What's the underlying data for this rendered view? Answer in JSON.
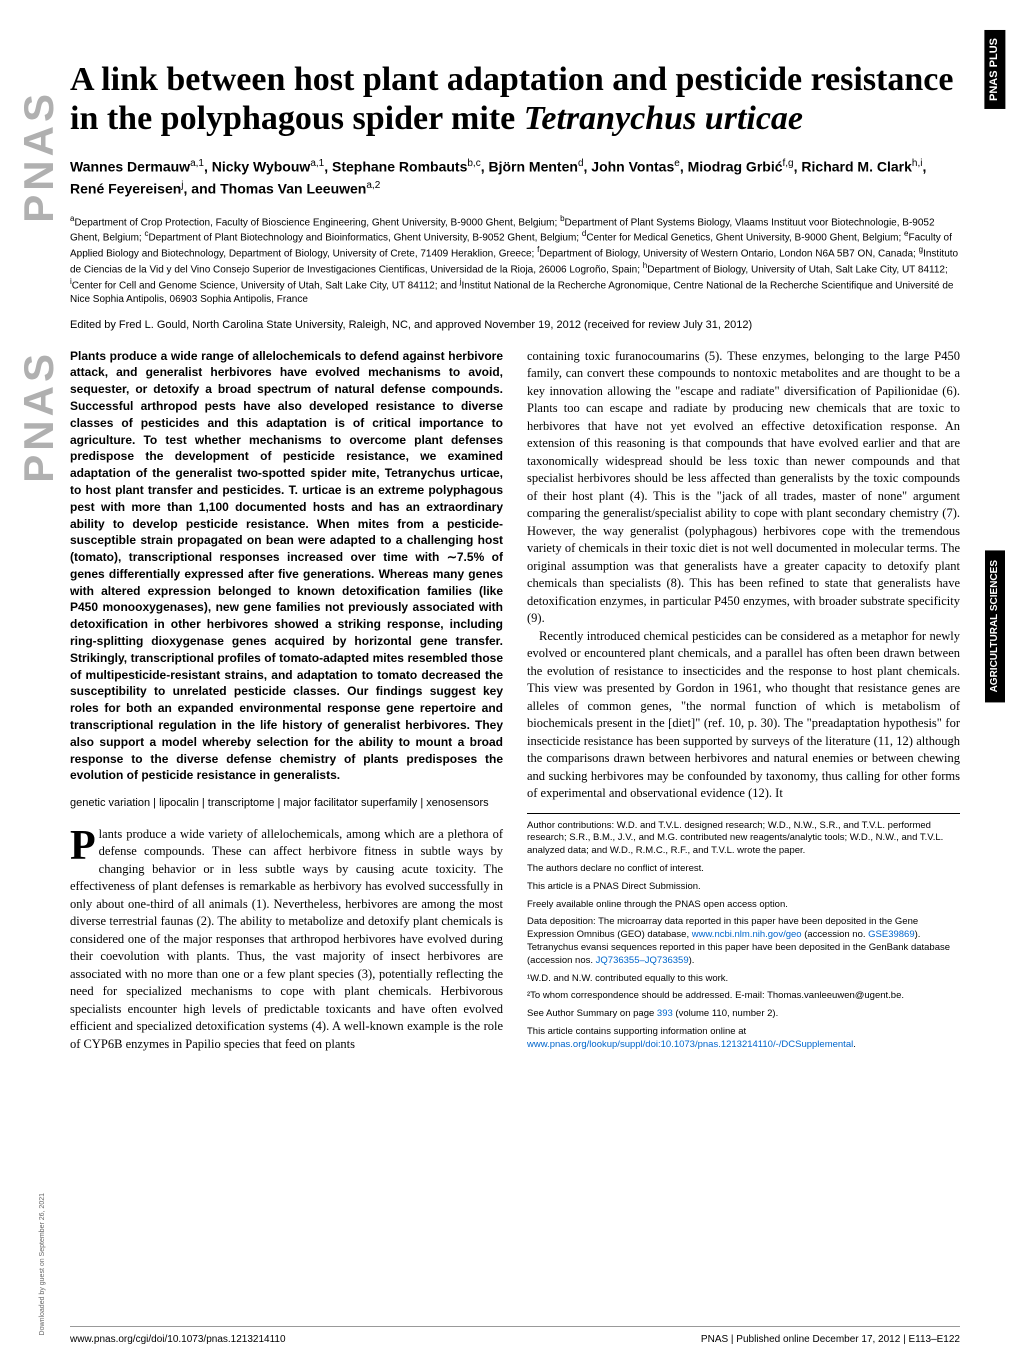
{
  "badges": {
    "pnas_plus": "PNAS PLUS",
    "agri_sciences": "AGRICULTURAL SCIENCES"
  },
  "logo_text": "PNAS",
  "title": {
    "line1": "A link between host plant adaptation and pesticide resistance in the polyphagous spider mite",
    "italic_species": "Tetranychus urticae"
  },
  "authors_html": "Wannes Dermauw<sup>a,1</sup>, Nicky Wybouw<sup>a,1</sup>, Stephane Rombauts<sup>b,c</sup>, Björn Menten<sup>d</sup>, John Vontas<sup>e</sup>, Miodrag Grbić<sup>f,g</sup>, Richard M. Clark<sup>h,i</sup>, René Feyereisen<sup>j</sup>, and Thomas Van Leeuwen<sup>a,2</sup>",
  "affiliations_html": "<sup>a</sup>Department of Crop Protection, Faculty of Bioscience Engineering, Ghent University, B-9000 Ghent, Belgium; <sup>b</sup>Department of Plant Systems Biology, Vlaams Instituut voor Biotechnologie, B-9052 Ghent, Belgium; <sup>c</sup>Department of Plant Biotechnology and Bioinformatics, Ghent University, B-9052 Ghent, Belgium; <sup>d</sup>Center for Medical Genetics, Ghent University, B-9000 Ghent, Belgium; <sup>e</sup>Faculty of Applied Biology and Biotechnology, Department of Biology, University of Crete, 71409 Heraklion, Greece; <sup>f</sup>Department of Biology, University of Western Ontario, London N6A 5B7 ON, Canada; <sup>g</sup>Instituto de Ciencias de la Vid y del Vino Consejo Superior de Investigaciones Cientificas, Universidad de la Rioja, 26006 Logroño, Spain; <sup>h</sup>Department of Biology, University of Utah, Salt Lake City, UT 84112; <sup>i</sup>Center for Cell and Genome Science, University of Utah, Salt Lake City, UT 84112; and <sup>j</sup>Institut National de la Recherche Agronomique, Centre National de la Recherche Scientifique and Université de Nice Sophia Antipolis, 06903 Sophia Antipolis, France",
  "edited_by": "Edited by Fred L. Gould, North Carolina State University, Raleigh, NC, and approved November 19, 2012 (received for review July 31, 2012)",
  "abstract": "Plants produce a wide range of allelochemicals to defend against herbivore attack, and generalist herbivores have evolved mechanisms to avoid, sequester, or detoxify a broad spectrum of natural defense compounds. Successful arthropod pests have also developed resistance to diverse classes of pesticides and this adaptation is of critical importance to agriculture. To test whether mechanisms to overcome plant defenses predispose the development of pesticide resistance, we examined adaptation of the generalist two-spotted spider mite, Tetranychus urticae, to host plant transfer and pesticides. T. urticae is an extreme polyphagous pest with more than 1,100 documented hosts and has an extraordinary ability to develop pesticide resistance. When mites from a pesticide-susceptible strain propagated on bean were adapted to a challenging host (tomato), transcriptional responses increased over time with ∼7.5% of genes differentially expressed after five generations. Whereas many genes with altered expression belonged to known detoxification families (like P450 monooxygenases), new gene families not previously associated with detoxification in other herbivores showed a striking response, including ring-splitting dioxygenase genes acquired by horizontal gene transfer. Strikingly, transcriptional profiles of tomato-adapted mites resembled those of multipesticide-resistant strains, and adaptation to tomato decreased the susceptibility to unrelated pesticide classes. Our findings suggest key roles for both an expanded environmental response gene repertoire and transcriptional regulation in the life history of generalist herbivores. They also support a model whereby selection for the ability to mount a broad response to the diverse defense chemistry of plants predisposes the evolution of pesticide resistance in generalists.",
  "keywords": "genetic variation | lipocalin | transcriptome | major facilitator superfamily | xenosensors",
  "body_left": "lants produce a wide variety of allelochemicals, among which are a plethora of defense compounds. These can affect herbivore fitness in subtle ways by changing behavior or in less subtle ways by causing acute toxicity. The effectiveness of plant defenses is remarkable as herbivory has evolved successfully in only about one-third of all animals (1). Nevertheless, herbivores are among the most diverse terrestrial faunas (2). The ability to metabolize and detoxify plant chemicals is considered one of the major responses that arthropod herbivores have evolved during their coevolution with plants. Thus, the vast majority of insect herbivores are associated with no more than one or a few plant species (3), potentially reflecting the need for specialized mechanisms to cope with plant chemicals. Herbivorous specialists encounter high levels of predictable toxicants and have often evolved efficient and specialized detoxification systems (4). A well-known example is the role of CYP6B enzymes in Papilio species that feed on plants",
  "body_right_p1": "containing toxic furanocoumarins (5). These enzymes, belonging to the large P450 family, can convert these compounds to nontoxic metabolites and are thought to be a key innovation allowing the \"escape and radiate\" diversification of Papilionidae (6). Plants too can escape and radiate by producing new chemicals that are toxic to herbivores that have not yet evolved an effective detoxification response. An extension of this reasoning is that compounds that have evolved earlier and that are taxonomically widespread should be less toxic than newer compounds and that specialist herbivores should be less affected than generalists by the toxic compounds of their host plant (4). This is the \"jack of all trades, master of none\" argument comparing the generalist/specialist ability to cope with plant secondary chemistry (7). However, the way generalist (polyphagous) herbivores cope with the tremendous variety of chemicals in their toxic diet is not well documented in molecular terms. The original assumption was that generalists have a greater capacity to detoxify plant chemicals than specialists (8). This has been refined to state that generalists have detoxification enzymes, in particular P450 enzymes, with broader substrate specificity (9).",
  "body_right_p2": "Recently introduced chemical pesticides can be considered as a metaphor for newly evolved or encountered plant chemicals, and a parallel has often been drawn between the evolution of resistance to insecticides and the response to host plant chemicals. This view was presented by Gordon in 1961, who thought that resistance genes are alleles of common genes, \"the normal function of which is metabolism of biochemicals present in the [diet]\" (ref. 10, p. 30). The \"preadaptation hypothesis\" for insecticide resistance has been supported by surveys of the literature (11, 12) although the comparisons drawn between herbivores and natural enemies or between chewing and sucking herbivores may be confounded by taxonomy, thus calling for other forms of experimental and observational evidence (12). It",
  "footnotes": {
    "author_contrib": "Author contributions: W.D. and T.V.L. designed research; W.D., N.W., S.R., and T.V.L. performed research; S.R., B.M., J.V., and M.G. contributed new reagents/analytic tools; W.D., N.W., and T.V.L. analyzed data; and W.D., R.M.C., R.F., and T.V.L. wrote the paper.",
    "conflict": "The authors declare no conflict of interest.",
    "direct": "This article is a PNAS Direct Submission.",
    "open_access": "Freely available online through the PNAS open access option.",
    "data_deposition": "Data deposition: The microarray data reported in this paper have been deposited in the Gene Expression Omnibus (GEO) database, ",
    "data_link1": "www.ncbi.nlm.nih.gov/geo",
    "data_accession": " (accession no. ",
    "data_link2": "GSE39869",
    "data_deposition2": "). Tetranychus evansi sequences reported in this paper have been deposited in the GenBank database (accession nos. ",
    "data_link3": "JQ736355–JQ736359",
    "data_deposition3": ").",
    "equal": "¹W.D. and N.W. contributed equally to this work.",
    "correspondence": "²To whom correspondence should be addressed. E-mail: Thomas.vanleeuwen@ugent.be.",
    "summary": "See Author Summary on page ",
    "summary_link": "393",
    "summary2": " (volume 110, number 2).",
    "supporting": "This article contains supporting information online at ",
    "supporting_link": "www.pnas.org/lookup/suppl/doi:10.1073/pnas.1213214110/-/DCSupplemental",
    "supporting2": "."
  },
  "footer": {
    "doi": "www.pnas.org/cgi/doi/10.1073/pnas.1213214110",
    "right": "PNAS | Published online December 17, 2012 | E113–E122"
  },
  "download_note": "Downloaded by guest on September 26, 2021",
  "colors": {
    "link": "#0066cc",
    "logo_gray": "#b0b0b0",
    "black": "#000000",
    "white": "#ffffff"
  },
  "fonts": {
    "title_size": 34,
    "authors_size": 14,
    "affiliations_size": 10,
    "abstract_size": 12,
    "body_size": 12.5,
    "footnotes_size": 9.5
  }
}
